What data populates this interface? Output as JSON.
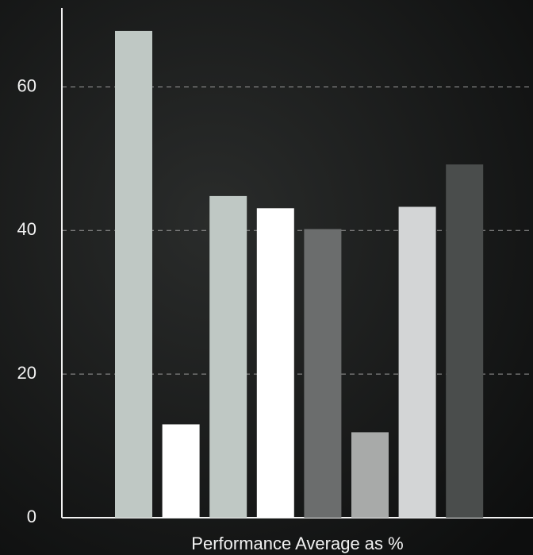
{
  "chart_data": {
    "type": "bar",
    "x_label": "Performance Average as %",
    "categories": [
      null,
      null,
      null,
      null,
      null,
      null,
      null,
      null
    ],
    "values": [
      67.8,
      13,
      44.8,
      43.1,
      40.2,
      11.9,
      43.3,
      49.2
    ],
    "colors": [
      "#bfc8c4",
      "#ffffff",
      "#bfc8c4",
      "#ffffff",
      "#6b6d6d",
      "#a8aaa9",
      "#d3d5d6",
      "#4a4d4c"
    ],
    "ylim": [
      0,
      71
    ],
    "yticks": [
      0,
      20,
      40,
      60
    ],
    "grid": true
  }
}
